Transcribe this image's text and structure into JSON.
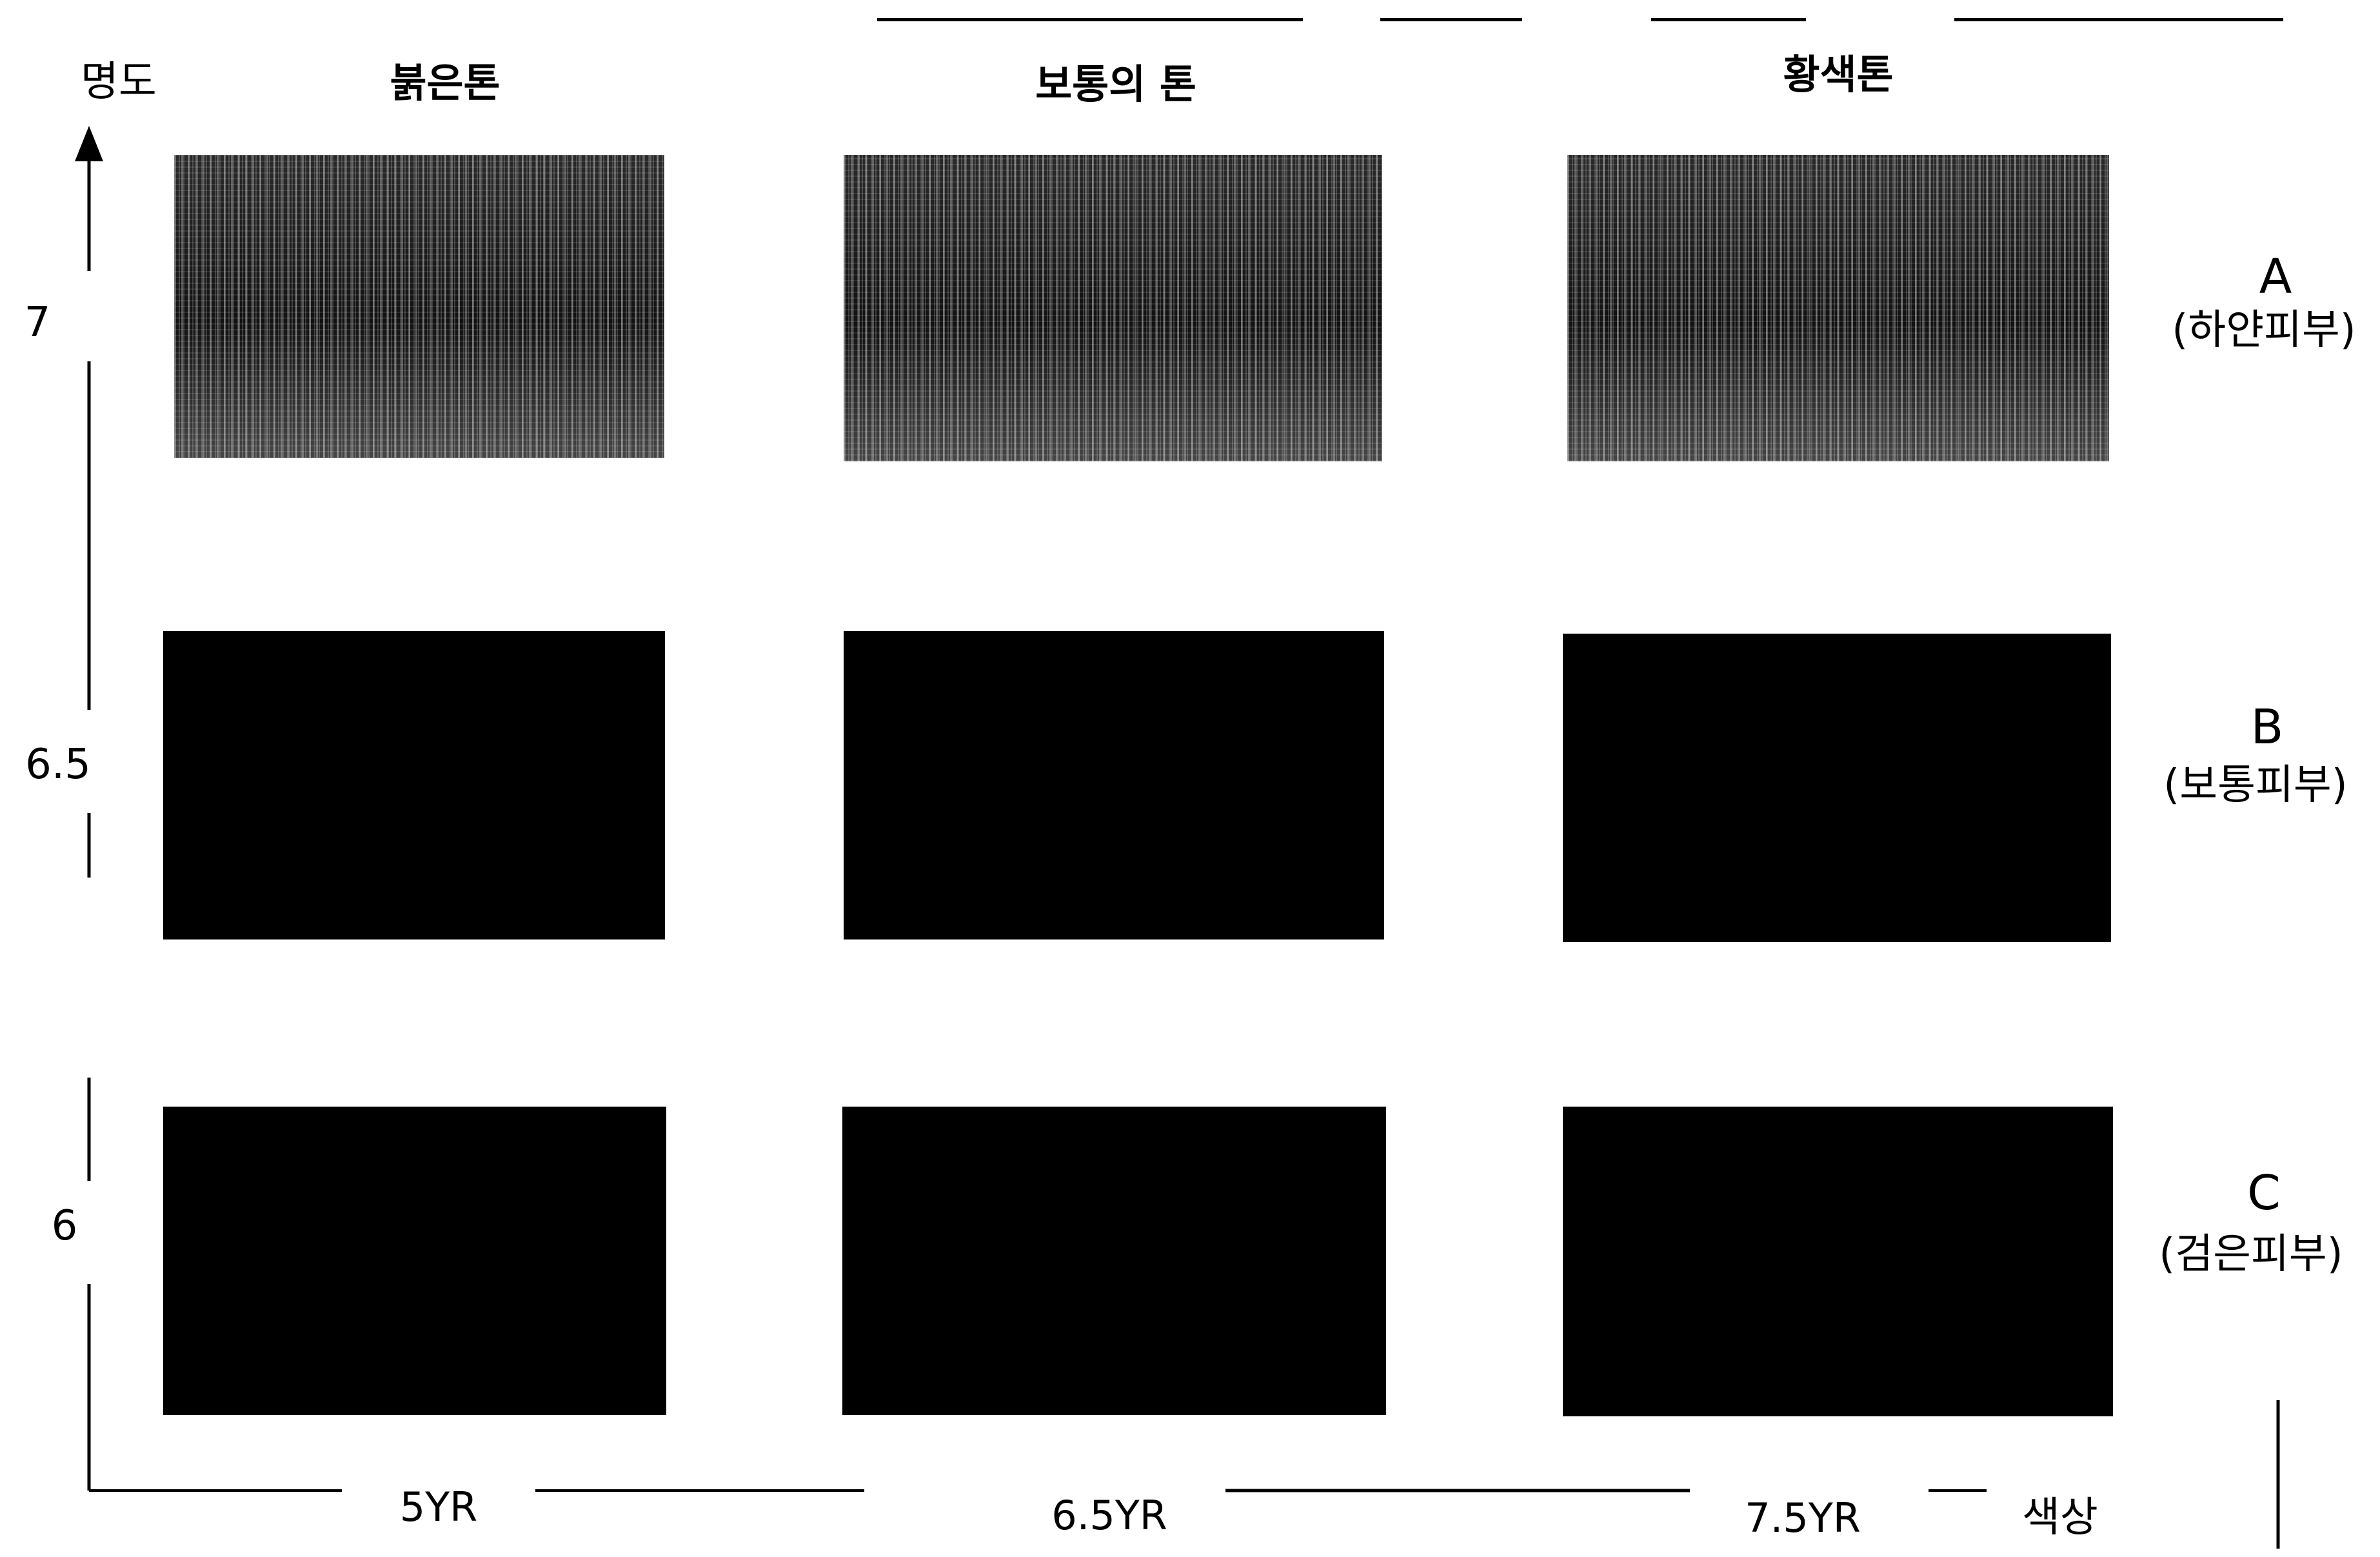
{
  "axes": {
    "y_label": "명도",
    "x_label": "색상",
    "y_ticks": [
      "7",
      "6.5",
      "6"
    ],
    "x_ticks": [
      "5YR",
      "6.5YR",
      "7.5YR"
    ]
  },
  "columns": [
    "붉은톤",
    "보통의 톤",
    "황색톤"
  ],
  "rows": [
    {
      "letter": "A",
      "sub": "(하얀피부)"
    },
    {
      "letter": "B",
      "sub": "(보통피부)"
    },
    {
      "letter": "C",
      "sub": "(검은피부)"
    }
  ],
  "colors": {
    "swatch": "#000000",
    "background": "#ffffff"
  }
}
